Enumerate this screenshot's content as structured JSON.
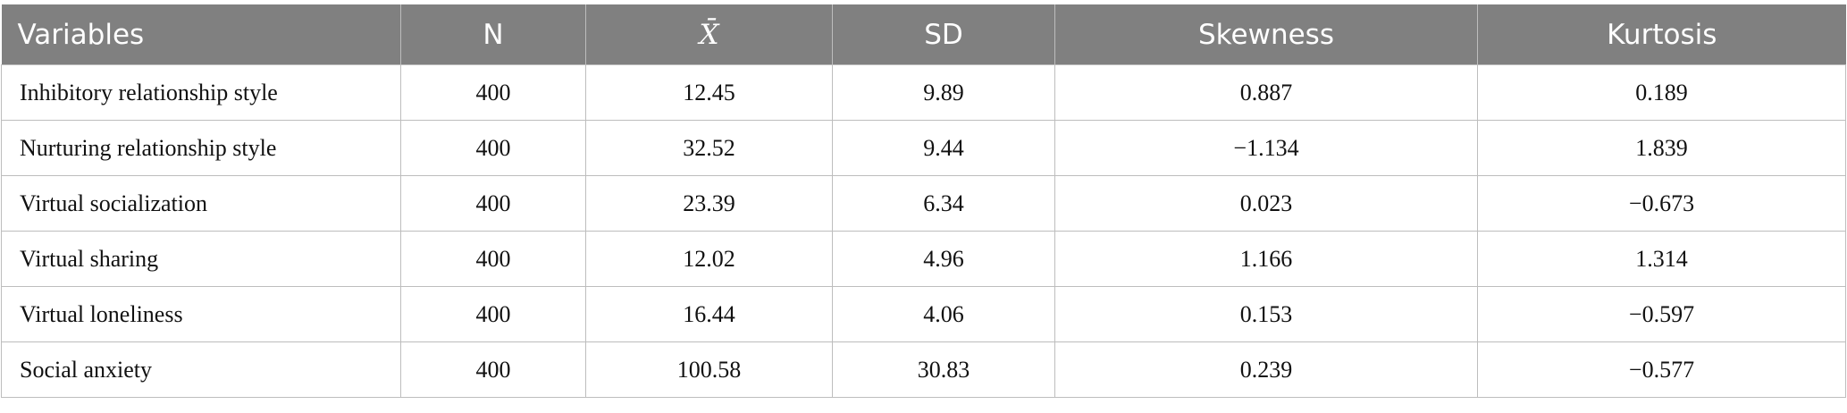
{
  "table": {
    "header": [
      "Variables",
      "N",
      "X̄",
      "SD",
      "Skewness",
      "Kurtosis"
    ],
    "rows": [
      [
        "Inhibitory relationship style",
        "400",
        "12.45",
        "9.89",
        "0.887",
        "0.189"
      ],
      [
        "Nurturing relationship style",
        "400",
        "32.52",
        "9.44",
        "−1.134",
        "1.839"
      ],
      [
        "Virtual socialization",
        "400",
        "23.39",
        "6.34",
        "0.023",
        "−0.673"
      ],
      [
        "Virtual sharing",
        "400",
        "12.02",
        "4.96",
        "1.166",
        "1.314"
      ],
      [
        "Virtual loneliness",
        "400",
        "16.44",
        "4.06",
        "0.153",
        "−0.597"
      ],
      [
        "Social anxiety",
        "400",
        "100.58",
        "30.83",
        "0.239",
        "−0.577"
      ]
    ]
  }
}
